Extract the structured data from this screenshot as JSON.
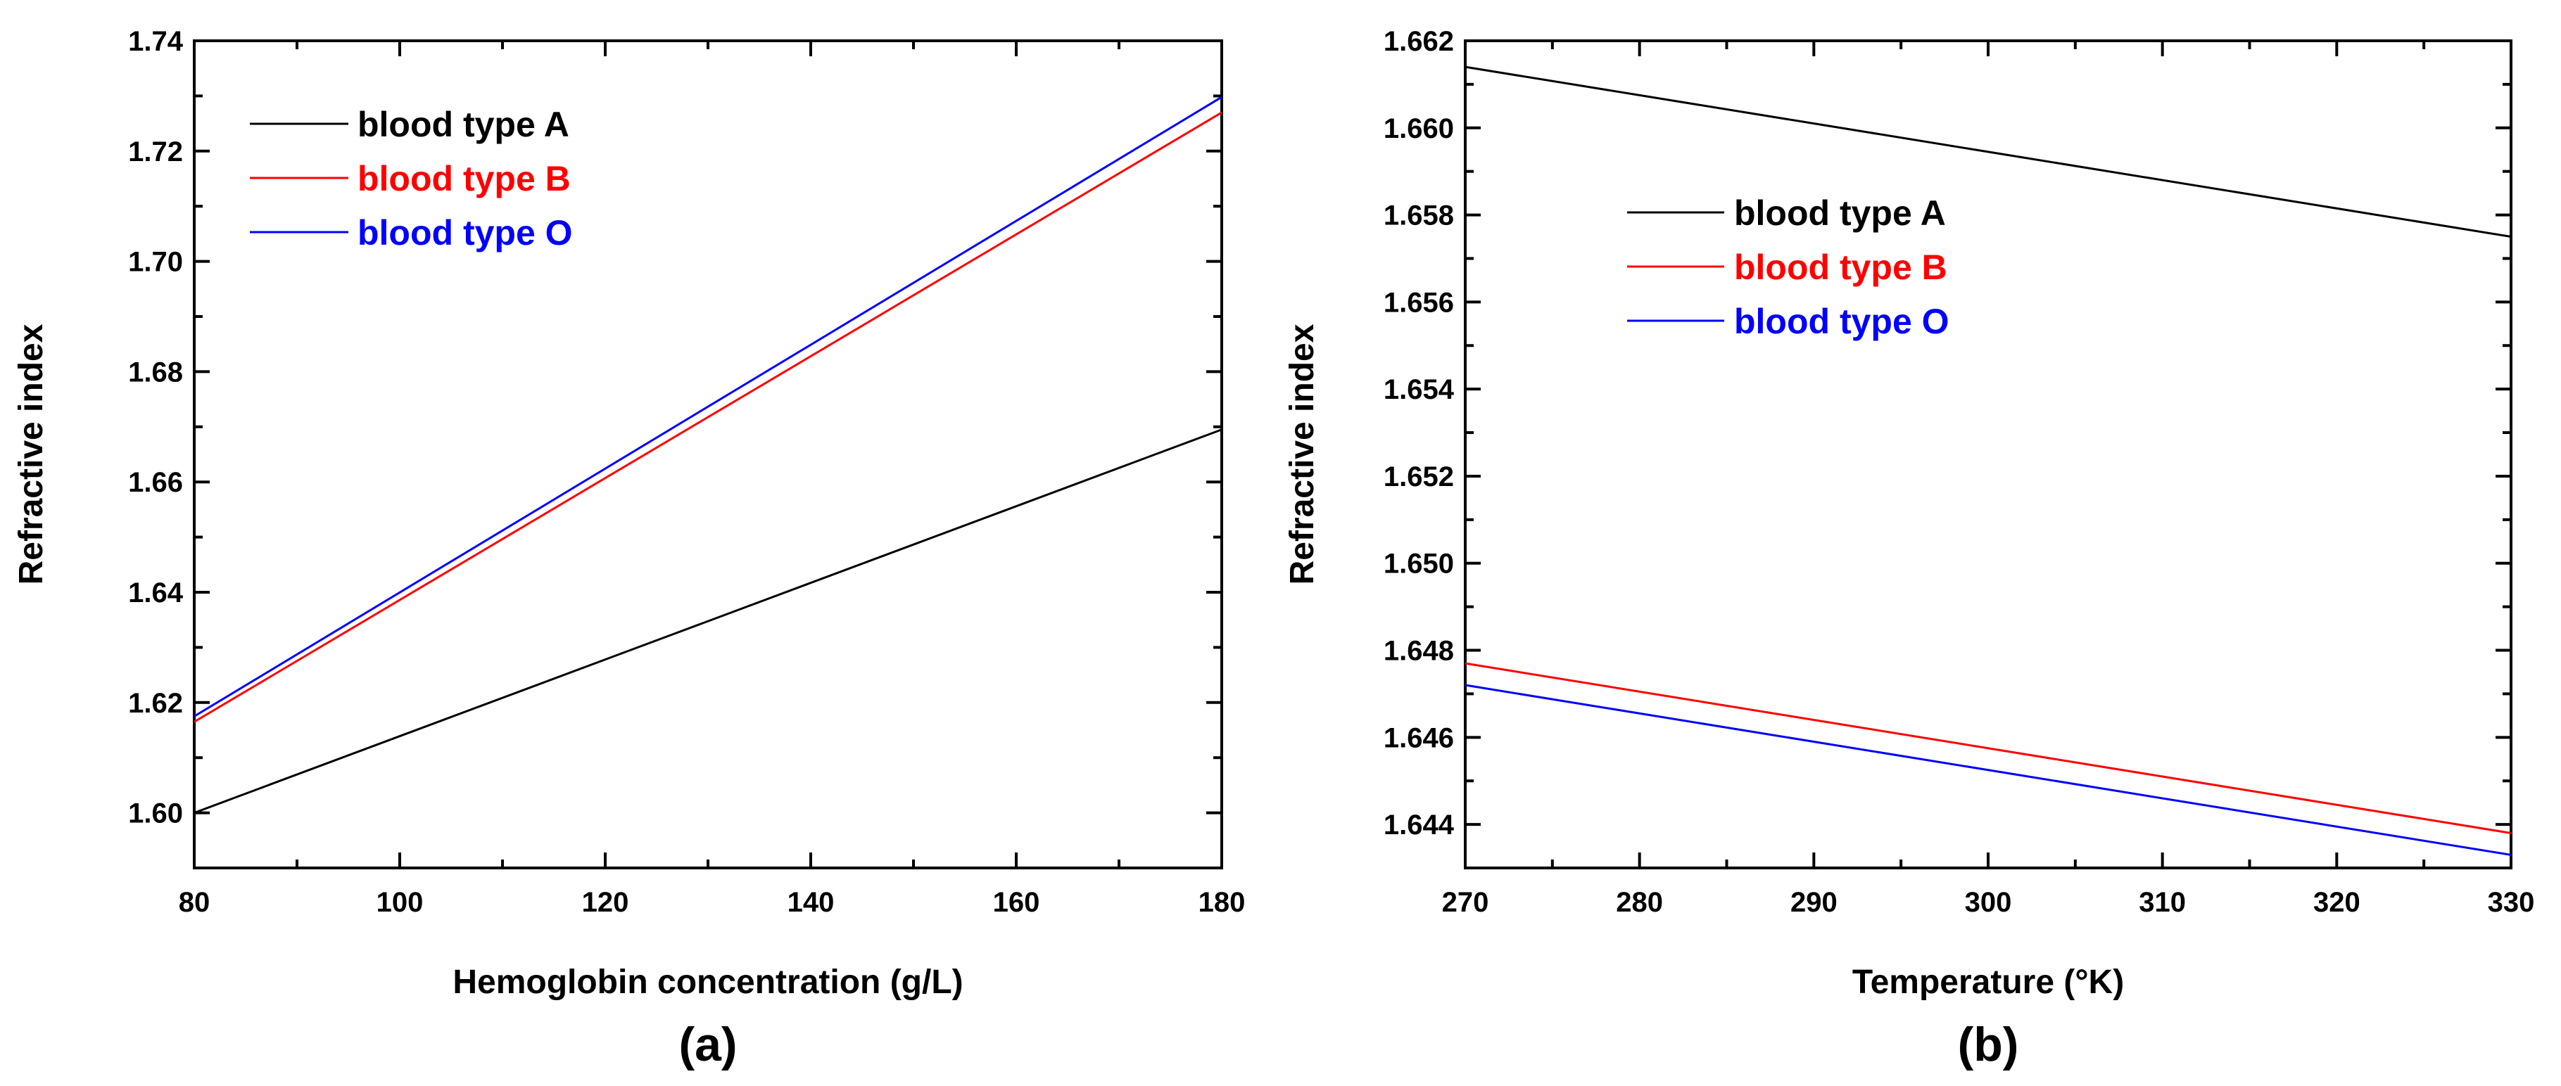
{
  "chart_data": [
    {
      "type": "line",
      "panel_label": "(a)",
      "xlabel": "Hemoglobin concentration (g/L)",
      "ylabel": "Refractive index",
      "xlim": [
        80,
        180
      ],
      "ylim": [
        1.59,
        1.74
      ],
      "xticks": [
        80,
        100,
        120,
        140,
        160,
        180
      ],
      "xtick_labels": [
        "80",
        "100",
        "120",
        "140",
        "160",
        "180"
      ],
      "yticks": [
        1.6,
        1.62,
        1.64,
        1.66,
        1.68,
        1.7,
        1.72,
        1.74
      ],
      "ytick_labels": [
        "1.60",
        "1.62",
        "1.64",
        "1.66",
        "1.68",
        "1.70",
        "1.72",
        "1.74"
      ],
      "legend_position": "top-left",
      "series": [
        {
          "name": "blood type A",
          "color": "#000000",
          "x": [
            80,
            180
          ],
          "y": [
            1.6,
            1.6695
          ]
        },
        {
          "name": "blood type B",
          "color": "#ff0000",
          "x": [
            80,
            180
          ],
          "y": [
            1.6165,
            1.727
          ]
        },
        {
          "name": "blood type O",
          "color": "#0000ff",
          "x": [
            80,
            180
          ],
          "y": [
            1.6175,
            1.7298
          ]
        }
      ]
    },
    {
      "type": "line",
      "panel_label": "(b)",
      "xlabel": "Temperature (°K)",
      "ylabel": "Refractive index",
      "xlim": [
        270,
        330
      ],
      "ylim": [
        1.643,
        1.662
      ],
      "xticks": [
        270,
        280,
        290,
        300,
        310,
        320,
        330
      ],
      "xtick_labels": [
        "270",
        "280",
        "290",
        "300",
        "310",
        "320",
        "330"
      ],
      "yticks": [
        1.644,
        1.646,
        1.648,
        1.65,
        1.652,
        1.654,
        1.656,
        1.658,
        1.66,
        1.662
      ],
      "ytick_labels": [
        "1.644",
        "1.646",
        "1.648",
        "1.650",
        "1.652",
        "1.654",
        "1.656",
        "1.658",
        "1.660",
        "1.662"
      ],
      "legend_position": "upper-left",
      "series": [
        {
          "name": "blood type A",
          "color": "#000000",
          "x": [
            270,
            330
          ],
          "y": [
            1.6614,
            1.6575
          ]
        },
        {
          "name": "blood type B",
          "color": "#ff0000",
          "x": [
            270,
            330
          ],
          "y": [
            1.6477,
            1.6438
          ]
        },
        {
          "name": "blood type O",
          "color": "#0000ff",
          "x": [
            270,
            330
          ],
          "y": [
            1.6472,
            1.6433
          ]
        }
      ]
    }
  ]
}
